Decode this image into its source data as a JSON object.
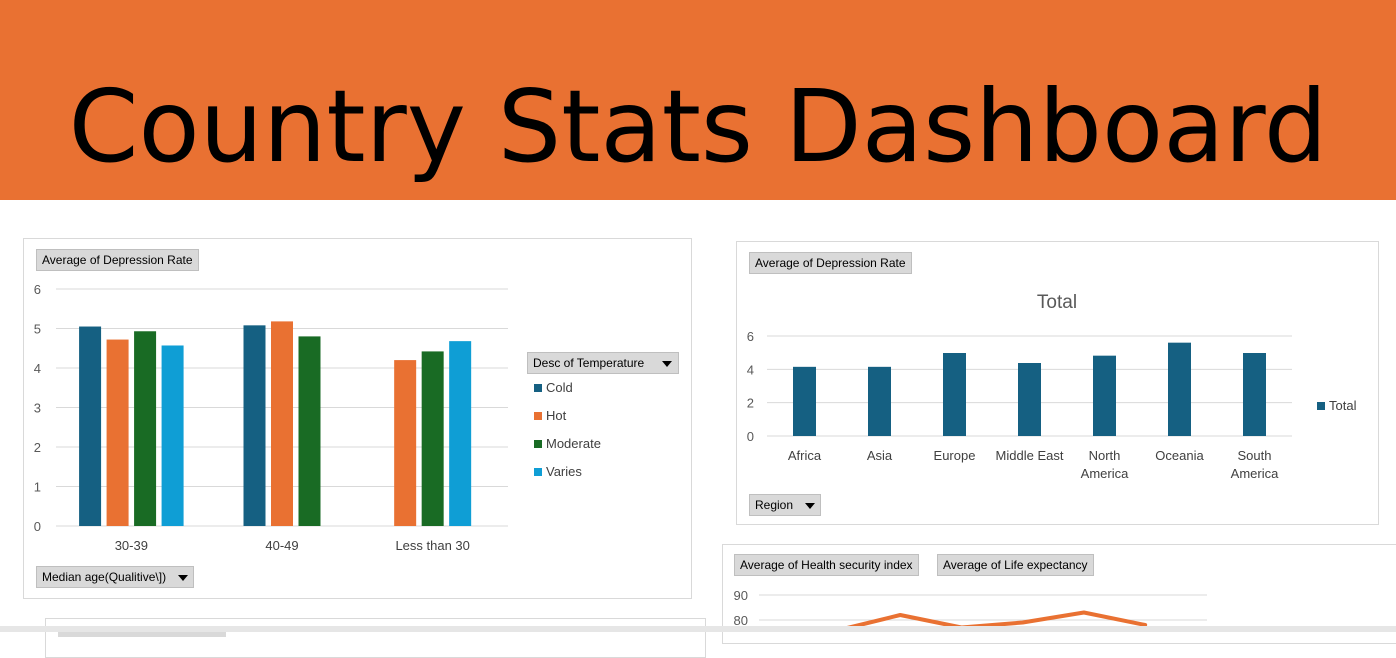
{
  "dashboard": {
    "title": "Country Stats Dashboard"
  },
  "colors": {
    "banner": "#E97132",
    "cold": "#156082",
    "hot": "#E97132",
    "moderate": "#196B24",
    "varies": "#0F9ED5",
    "total": "#156082"
  },
  "chart1": {
    "value_field": "Average of Depression Rate",
    "axis_field": "Median age(Qualitive\\])",
    "legend_title": "Desc of Temperature"
  },
  "chart2": {
    "value_field": "Average of Depression Rate",
    "axis_field": "Region",
    "title": "Total",
    "legend_label": "Total"
  },
  "chart3": {
    "value_field_1": "Average of Health security index",
    "value_field_2": "Average of Life expectancy"
  },
  "chart_data": [
    {
      "type": "bar",
      "categories": [
        "30-39",
        "40-49",
        "Less than 30"
      ],
      "series": [
        {
          "name": "Cold",
          "color": "#156082",
          "values": [
            5.05,
            5.08,
            null
          ]
        },
        {
          "name": "Hot",
          "color": "#E97132",
          "values": [
            4.72,
            5.18,
            4.2
          ]
        },
        {
          "name": "Moderate",
          "color": "#196B24",
          "values": [
            4.93,
            4.8,
            4.42
          ]
        },
        {
          "name": "Varies",
          "color": "#0F9ED5",
          "values": [
            4.57,
            null,
            4.68
          ]
        }
      ],
      "ylim": [
        0,
        6
      ],
      "yticks": [
        0,
        1,
        2,
        3,
        4,
        5,
        6
      ],
      "grid": true,
      "legend_position": "right"
    },
    {
      "type": "bar",
      "title": "Total",
      "categories": [
        "Africa",
        "Asia",
        "Europe",
        "Middle East",
        "North America",
        "Oceania",
        "South America"
      ],
      "series": [
        {
          "name": "Total",
          "color": "#156082",
          "values": [
            4.15,
            4.15,
            4.98,
            4.38,
            4.82,
            5.6,
            4.98
          ]
        }
      ],
      "ylim": [
        0,
        6
      ],
      "yticks": [
        0,
        2,
        4,
        6
      ],
      "grid": true,
      "legend_position": "right"
    },
    {
      "type": "line",
      "yticks_visible": [
        80,
        90
      ],
      "series": [
        {
          "color": "#E97132",
          "values": [
            null,
            76,
            82,
            77,
            79,
            83,
            78
          ]
        }
      ],
      "grid": true
    }
  ]
}
